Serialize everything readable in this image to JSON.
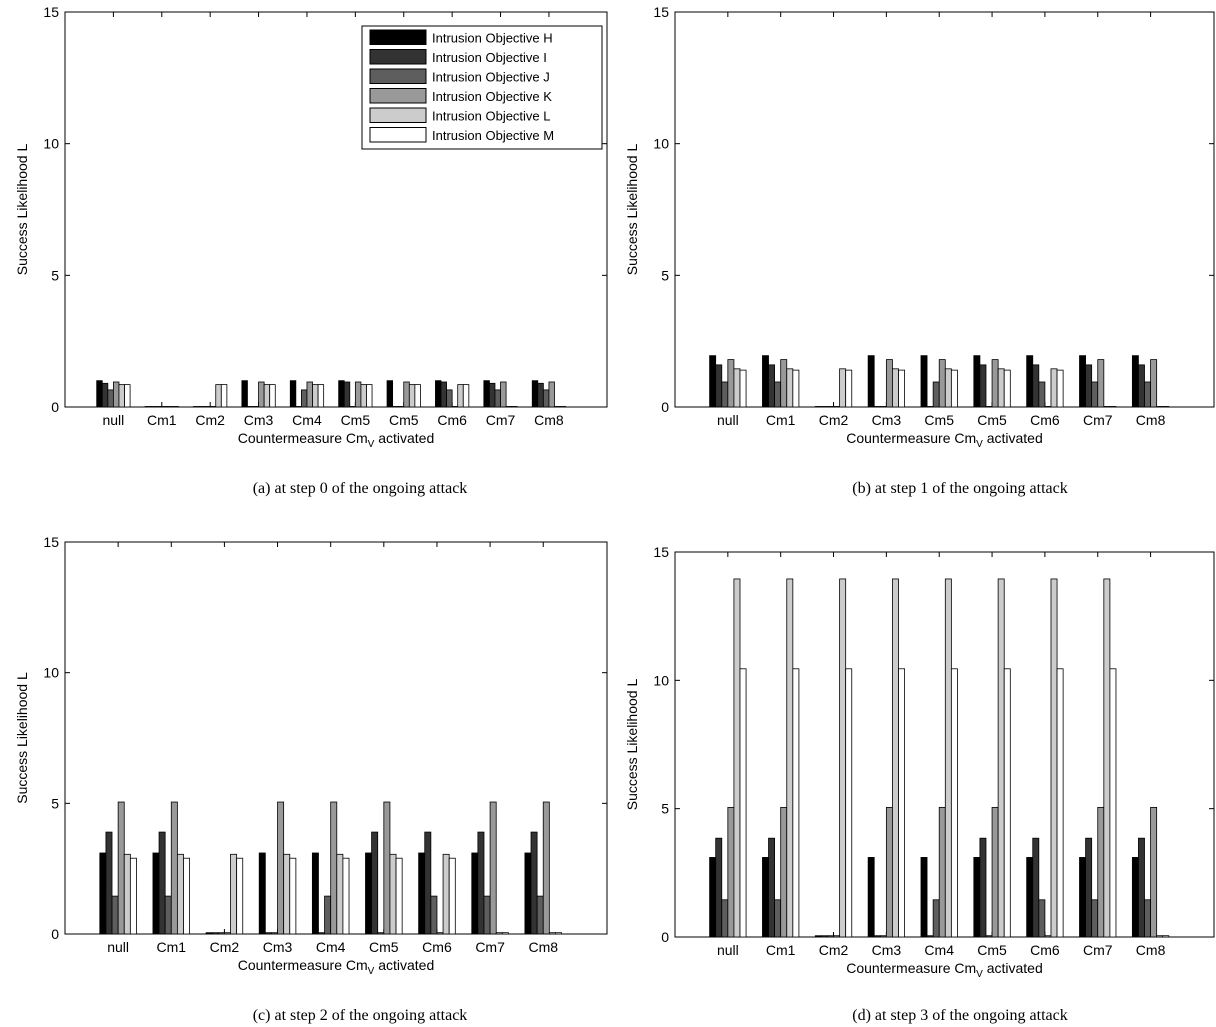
{
  "legend_colors": [
    "#000000",
    "#333333",
    "#5e5e5e",
    "#999999",
    "#cccccc",
    "#ffffff"
  ],
  "chart_data": [
    {
      "type": "bar",
      "caption": "(a) at step 0 of the ongoing attack",
      "xlabel": "Countermeasure Cm",
      "xlabel_sub": "V",
      "xlabel_suffix": " activated",
      "ylabel": "Success Likelihood L",
      "ylim": [
        0,
        15
      ],
      "yticks": [
        "0",
        "5",
        "10",
        "15"
      ],
      "categories": [
        "null",
        "Cm1",
        "Cm2",
        "Cm3",
        "Cm4",
        "Cm5",
        "Cm5",
        "Cm6",
        "Cm7",
        "Cm8"
      ],
      "legend_position": "top-right",
      "series": [
        {
          "name": "Intrusion Objective H",
          "values": [
            1.0,
            0.02,
            0.02,
            1.0,
            1.0,
            1.0,
            1.0,
            1.0,
            1.0,
            1.0
          ]
        },
        {
          "name": "Intrusion Objective I",
          "values": [
            0.9,
            0.02,
            0.02,
            0.02,
            0.02,
            0.95,
            0.02,
            0.95,
            0.9,
            0.9
          ]
        },
        {
          "name": "Intrusion Objective J",
          "values": [
            0.65,
            0.02,
            0.02,
            0.02,
            0.65,
            0.02,
            0.02,
            0.65,
            0.65,
            0.65
          ]
        },
        {
          "name": "Intrusion Objective K",
          "values": [
            0.95,
            0.02,
            0.02,
            0.95,
            0.95,
            0.95,
            0.95,
            0.02,
            0.95,
            0.95
          ]
        },
        {
          "name": "Intrusion Objective L",
          "values": [
            0.85,
            0.02,
            0.85,
            0.85,
            0.85,
            0.85,
            0.85,
            0.85,
            0.02,
            0.02
          ]
        },
        {
          "name": "Intrusion Objective M",
          "values": [
            0.85,
            0.02,
            0.85,
            0.85,
            0.85,
            0.85,
            0.85,
            0.85,
            0.02,
            0.02
          ]
        }
      ]
    },
    {
      "type": "bar",
      "caption": "(b) at step 1 of the ongoing attack",
      "xlabel": "Countermeasure Cm",
      "xlabel_sub": "V",
      "xlabel_suffix": " activated",
      "ylabel": "Success Likelihood L",
      "ylim": [
        0,
        15
      ],
      "yticks": [
        "0",
        "5",
        "10",
        "15"
      ],
      "categories": [
        "null",
        "Cm1",
        "Cm2",
        "Cm3",
        "Cm5",
        "Cm5",
        "Cm6",
        "Cm7",
        "Cm8"
      ],
      "series": [
        {
          "name": "Intrusion Objective H",
          "values": [
            1.95,
            1.95,
            0.02,
            1.95,
            1.95,
            1.95,
            1.95,
            1.95,
            1.95
          ]
        },
        {
          "name": "Intrusion Objective I",
          "values": [
            1.6,
            1.6,
            0.02,
            0.02,
            0.02,
            1.6,
            1.6,
            1.6,
            1.6
          ]
        },
        {
          "name": "Intrusion Objective J",
          "values": [
            0.95,
            0.95,
            0.02,
            0.02,
            0.95,
            0.02,
            0.95,
            0.95,
            0.95
          ]
        },
        {
          "name": "Intrusion Objective K",
          "values": [
            1.8,
            1.8,
            0.02,
            1.8,
            1.8,
            1.8,
            0.02,
            1.8,
            1.8
          ]
        },
        {
          "name": "Intrusion Objective L",
          "values": [
            1.45,
            1.45,
            1.45,
            1.45,
            1.45,
            1.45,
            1.45,
            0.02,
            0.02
          ]
        },
        {
          "name": "Intrusion Objective M",
          "values": [
            1.4,
            1.4,
            1.4,
            1.4,
            1.4,
            1.4,
            1.4,
            0.02,
            0.02
          ]
        }
      ]
    },
    {
      "type": "bar",
      "caption": "(c) at step 2 of the ongoing attack",
      "xlabel": "Countermeasure Cm",
      "xlabel_sub": "V",
      "xlabel_suffix": " activated",
      "ylabel": "Success Likelihood L",
      "ylim": [
        0,
        15
      ],
      "yticks": [
        "0",
        "5",
        "10",
        "15"
      ],
      "categories": [
        "null",
        "Cm1",
        "Cm2",
        "Cm3",
        "Cm4",
        "Cm5",
        "Cm6",
        "Cm7",
        "Cm8"
      ],
      "series": [
        {
          "name": "Intrusion Objective H",
          "values": [
            3.1,
            3.1,
            0.05,
            3.1,
            3.1,
            3.1,
            3.1,
            3.1,
            3.1
          ]
        },
        {
          "name": "Intrusion Objective I",
          "values": [
            3.9,
            3.9,
            0.05,
            0.05,
            0.05,
            3.9,
            3.9,
            3.9,
            3.9
          ]
        },
        {
          "name": "Intrusion Objective J",
          "values": [
            1.45,
            1.45,
            0.05,
            0.05,
            1.45,
            0.05,
            1.45,
            1.45,
            1.45
          ]
        },
        {
          "name": "Intrusion Objective K",
          "values": [
            5.05,
            5.05,
            0.05,
            5.05,
            5.05,
            5.05,
            0.05,
            5.05,
            5.05
          ]
        },
        {
          "name": "Intrusion Objective L",
          "values": [
            3.05,
            3.05,
            3.05,
            3.05,
            3.05,
            3.05,
            3.05,
            0.05,
            0.05
          ]
        },
        {
          "name": "Intrusion Objective M",
          "values": [
            2.9,
            2.9,
            2.9,
            2.9,
            2.9,
            2.9,
            2.9,
            0.05,
            0.05
          ]
        }
      ]
    },
    {
      "type": "bar",
      "caption": "(d) at step 3 of the ongoing attack",
      "xlabel": "Countermeasure Cm",
      "xlabel_sub": "V",
      "xlabel_suffix": " activated",
      "ylabel": "Success Likelihood L",
      "ylim": [
        0,
        15
      ],
      "yticks": [
        "0",
        "5",
        "10",
        "15"
      ],
      "categories": [
        "null",
        "Cm1",
        "Cm2",
        "Cm3",
        "Cm4",
        "Cm5",
        "Cm6",
        "Cm7",
        "Cm8"
      ],
      "series": [
        {
          "name": "Intrusion Objective H",
          "values": [
            3.1,
            3.1,
            0.05,
            3.1,
            3.1,
            3.1,
            3.1,
            3.1,
            3.1
          ]
        },
        {
          "name": "Intrusion Objective I",
          "values": [
            3.85,
            3.85,
            0.05,
            0.05,
            0.05,
            3.85,
            3.85,
            3.85,
            3.85
          ]
        },
        {
          "name": "Intrusion Objective J",
          "values": [
            1.45,
            1.45,
            0.05,
            0.05,
            1.45,
            0.05,
            1.45,
            1.45,
            1.45
          ]
        },
        {
          "name": "Intrusion Objective K",
          "values": [
            5.05,
            5.05,
            0.05,
            5.05,
            5.05,
            5.05,
            0.05,
            5.05,
            5.05
          ]
        },
        {
          "name": "Intrusion Objective L",
          "values": [
            13.95,
            13.95,
            13.95,
            13.95,
            13.95,
            13.95,
            13.95,
            13.95,
            0.05
          ]
        },
        {
          "name": "Intrusion Objective M",
          "values": [
            10.45,
            10.45,
            10.45,
            10.45,
            10.45,
            10.45,
            10.45,
            10.45,
            0.05
          ]
        }
      ]
    }
  ]
}
